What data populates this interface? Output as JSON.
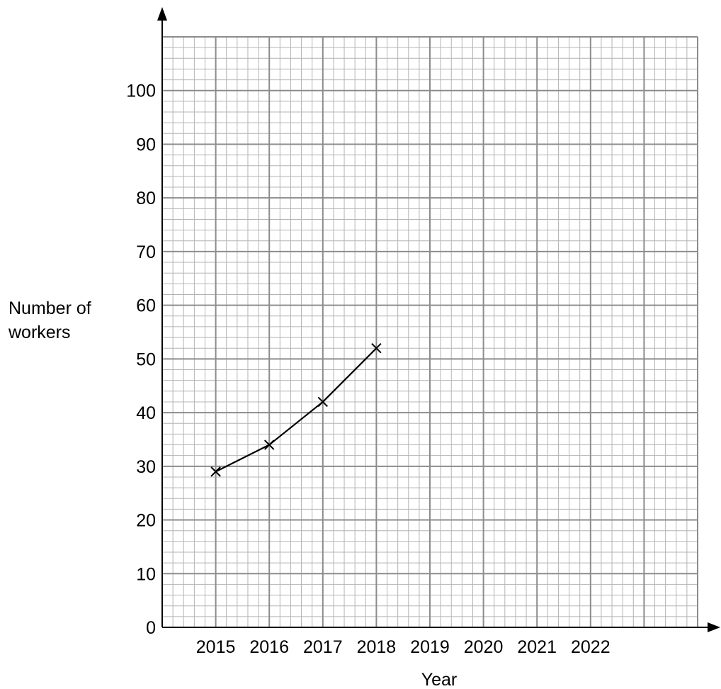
{
  "chart_data": {
    "type": "line",
    "title": "",
    "xlabel": "Year",
    "ylabel": [
      "Number of",
      "workers"
    ],
    "x_ticks": [
      "2015",
      "2016",
      "2017",
      "2018",
      "2019",
      "2020",
      "2021",
      "2022"
    ],
    "y_ticks": [
      "0",
      "10",
      "20",
      "30",
      "40",
      "50",
      "60",
      "70",
      "80",
      "90",
      "100"
    ],
    "ylim": [
      0,
      110
    ],
    "grid": true,
    "marker": "x",
    "series": [
      {
        "x": [
          2015,
          2016,
          2017,
          2018
        ],
        "y": [
          29,
          34,
          42,
          52
        ]
      }
    ]
  },
  "colors": {
    "major_grid": "#8c8c8c",
    "minor_grid": "#b4b4b4",
    "axis": "#000000",
    "line": "#000000"
  }
}
